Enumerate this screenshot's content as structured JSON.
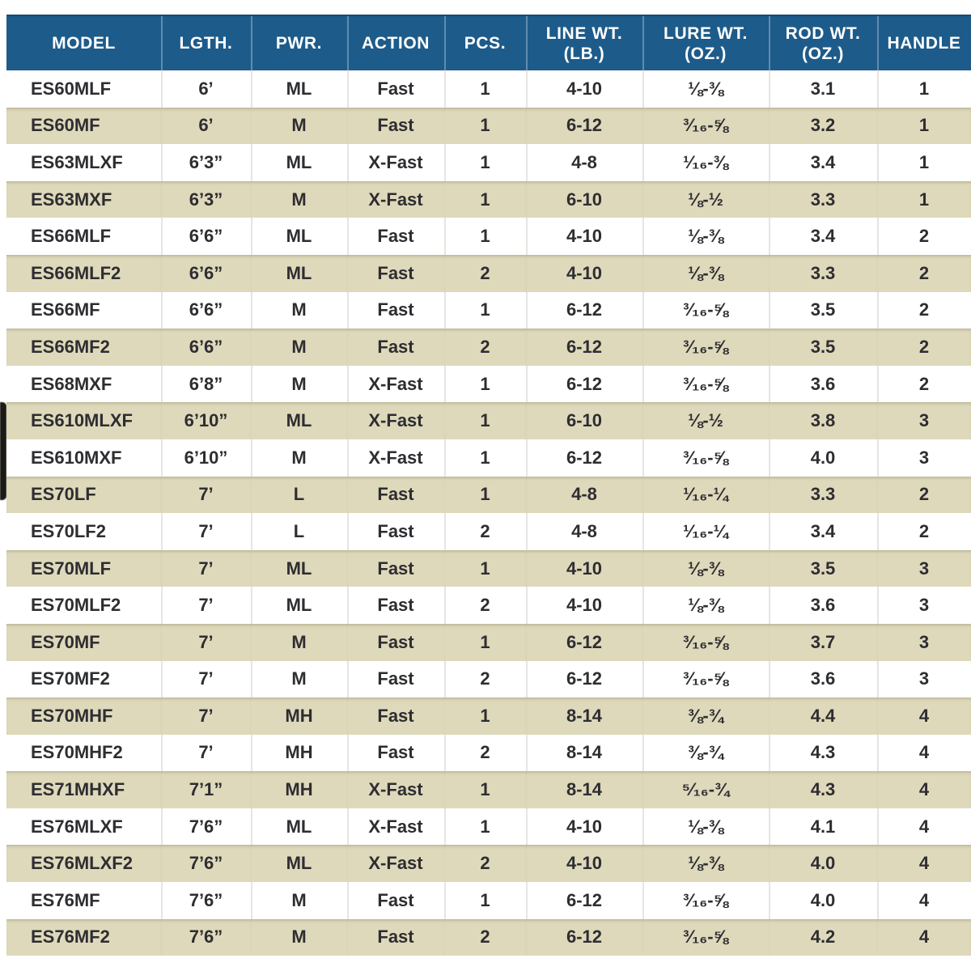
{
  "colors": {
    "header_bg": "#1d5b8a",
    "header_text": "#ffffff",
    "row_bg": "#ffffff",
    "row_alt_bg": "#ded9bb",
    "body_text": "#2e2d31",
    "header_divider": "rgba(255,255,255,0.30)",
    "white_row_divider": "#e6e5e1"
  },
  "table": {
    "columns": [
      {
        "id": "model",
        "label_lines": [
          "MODEL"
        ]
      },
      {
        "id": "length",
        "label_lines": [
          "LGTH."
        ]
      },
      {
        "id": "power",
        "label_lines": [
          "PWR."
        ]
      },
      {
        "id": "action",
        "label_lines": [
          "ACTION"
        ]
      },
      {
        "id": "pieces",
        "label_lines": [
          "PCS."
        ]
      },
      {
        "id": "line-wt",
        "label_lines": [
          "LINE WT.",
          "(LB.)"
        ]
      },
      {
        "id": "lure-wt",
        "label_lines": [
          "LURE WT.",
          "(OZ.)"
        ]
      },
      {
        "id": "rod-wt",
        "label_lines": [
          "ROD WT.",
          "(OZ.)"
        ]
      },
      {
        "id": "handle",
        "label_lines": [
          "HANDLE"
        ]
      }
    ],
    "rows": [
      [
        "ES60MLF",
        "6’",
        "ML",
        "Fast",
        "1",
        "4-10",
        "⅛-⅜",
        "3.1",
        "1"
      ],
      [
        "ES60MF",
        "6’",
        "M",
        "Fast",
        "1",
        "6-12",
        "³⁄₁₆-⅝",
        "3.2",
        "1"
      ],
      [
        "ES63MLXF",
        "6’3”",
        "ML",
        "X-Fast",
        "1",
        "4-8",
        "¹⁄₁₆-⅜",
        "3.4",
        "1"
      ],
      [
        "ES63MXF",
        "6’3”",
        "M",
        "X-Fast",
        "1",
        "6-10",
        "⅛-½",
        "3.3",
        "1"
      ],
      [
        "ES66MLF",
        "6’6”",
        "ML",
        "Fast",
        "1",
        "4-10",
        "⅛-⅜",
        "3.4",
        "2"
      ],
      [
        "ES66MLF2",
        "6’6”",
        "ML",
        "Fast",
        "2",
        "4-10",
        "⅛-⅜",
        "3.3",
        "2"
      ],
      [
        "ES66MF",
        "6’6”",
        "M",
        "Fast",
        "1",
        "6-12",
        "³⁄₁₆-⅝",
        "3.5",
        "2"
      ],
      [
        "ES66MF2",
        "6’6”",
        "M",
        "Fast",
        "2",
        "6-12",
        "³⁄₁₆-⅝",
        "3.5",
        "2"
      ],
      [
        "ES68MXF",
        "6’8”",
        "M",
        "X-Fast",
        "1",
        "6-12",
        "³⁄₁₆-⅝",
        "3.6",
        "2"
      ],
      [
        "ES610MLXF",
        "6’10”",
        "ML",
        "X-Fast",
        "1",
        "6-10",
        "⅛-½",
        "3.8",
        "3"
      ],
      [
        "ES610MXF",
        "6’10”",
        "M",
        "X-Fast",
        "1",
        "6-12",
        "³⁄₁₆-⅝",
        "4.0",
        "3"
      ],
      [
        "ES70LF",
        "7’",
        "L",
        "Fast",
        "1",
        "4-8",
        "¹⁄₁₆-¼",
        "3.3",
        "2"
      ],
      [
        "ES70LF2",
        "7’",
        "L",
        "Fast",
        "2",
        "4-8",
        "¹⁄₁₆-¼",
        "3.4",
        "2"
      ],
      [
        "ES70MLF",
        "7’",
        "ML",
        "Fast",
        "1",
        "4-10",
        "⅛-⅜",
        "3.5",
        "3"
      ],
      [
        "ES70MLF2",
        "7’",
        "ML",
        "Fast",
        "2",
        "4-10",
        "⅛-⅜",
        "3.6",
        "3"
      ],
      [
        "ES70MF",
        "7’",
        "M",
        "Fast",
        "1",
        "6-12",
        "³⁄₁₆-⅝",
        "3.7",
        "3"
      ],
      [
        "ES70MF2",
        "7’",
        "M",
        "Fast",
        "2",
        "6-12",
        "³⁄₁₆-⅝",
        "3.6",
        "3"
      ],
      [
        "ES70MHF",
        "7’",
        "MH",
        "Fast",
        "1",
        "8-14",
        "⅜-¾",
        "4.4",
        "4"
      ],
      [
        "ES70MHF2",
        "7’",
        "MH",
        "Fast",
        "2",
        "8-14",
        "⅜-¾",
        "4.3",
        "4"
      ],
      [
        "ES71MHXF",
        "7’1”",
        "MH",
        "X-Fast",
        "1",
        "8-14",
        "⁵⁄₁₆-¾",
        "4.3",
        "4"
      ],
      [
        "ES76MLXF",
        "7’6”",
        "ML",
        "X-Fast",
        "1",
        "4-10",
        "⅛-⅜",
        "4.1",
        "4"
      ],
      [
        "ES76MLXF2",
        "7’6”",
        "ML",
        "X-Fast",
        "2",
        "4-10",
        "⅛-⅜",
        "4.0",
        "4"
      ],
      [
        "ES76MF",
        "7’6”",
        "M",
        "Fast",
        "1",
        "6-12",
        "³⁄₁₆-⅝",
        "4.0",
        "4"
      ],
      [
        "ES76MF2",
        "7’6”",
        "M",
        "Fast",
        "2",
        "6-12",
        "³⁄₁₆-⅝",
        "4.2",
        "4"
      ]
    ]
  }
}
